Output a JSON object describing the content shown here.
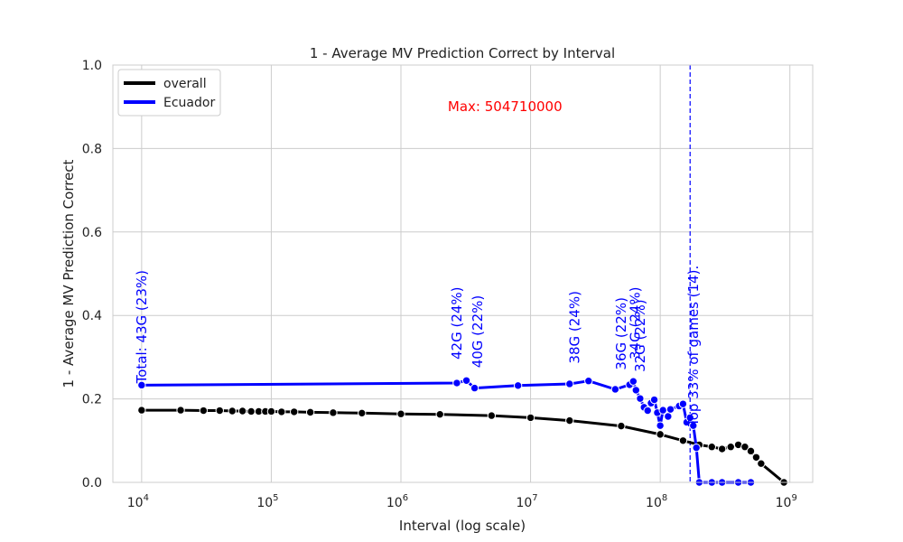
{
  "chart_data": {
    "type": "line",
    "title": "1 - Average MV Prediction Correct by Interval",
    "xlabel": "Interval (log scale)",
    "ylabel": "1 - Average MV Prediction Correct",
    "x_scale": "log",
    "xlim": [
      6000,
      1500000000
    ],
    "ylim": [
      0,
      1
    ],
    "x_ticks": [
      {
        "value": 10000,
        "base": "10",
        "exp": "4"
      },
      {
        "value": 100000,
        "base": "10",
        "exp": "5"
      },
      {
        "value": 1000000,
        "base": "10",
        "exp": "6"
      },
      {
        "value": 10000000,
        "base": "10",
        "exp": "7"
      },
      {
        "value": 100000000,
        "base": "10",
        "exp": "8"
      },
      {
        "value": 1000000000,
        "base": "10",
        "exp": "9"
      }
    ],
    "y_ticks": [
      "0.0",
      "0.2",
      "0.4",
      "0.6",
      "0.8",
      "1.0"
    ],
    "grid": true,
    "legend_position": "top-left",
    "series": [
      {
        "name": "overall",
        "color": "#000000",
        "x": [
          10000,
          20000,
          30000,
          40000,
          50000,
          60000,
          70000,
          80000,
          90000,
          100000,
          120000,
          150000,
          200000,
          300000,
          500000,
          1000000,
          2000000,
          5000000,
          10000000,
          20000000,
          50000000,
          100000000,
          150000000,
          200000000,
          250000000,
          300000000,
          350000000,
          400000000,
          450000000,
          500000000,
          550000000,
          600000000,
          900000000
        ],
        "y": [
          0.173,
          0.173,
          0.172,
          0.172,
          0.171,
          0.171,
          0.17,
          0.17,
          0.17,
          0.17,
          0.169,
          0.169,
          0.168,
          0.167,
          0.166,
          0.164,
          0.163,
          0.16,
          0.155,
          0.148,
          0.135,
          0.115,
          0.1,
          0.09,
          0.085,
          0.08,
          0.085,
          0.09,
          0.085,
          0.075,
          0.06,
          0.045,
          0.0
        ]
      },
      {
        "name": "Ecuador",
        "color": "#0000ff",
        "x": [
          10000,
          2700000,
          3200000,
          3700000,
          8000000,
          20000000,
          28000000,
          45000000,
          58000000,
          62000000,
          65000000,
          70000000,
          75000000,
          80000000,
          85000000,
          90000000,
          95000000,
          100000000,
          105000000,
          115000000,
          120000000,
          140000000,
          150000000,
          160000000,
          170000000,
          180000000,
          190000000,
          200000000,
          250000000,
          300000000,
          400000000,
          500000000
        ],
        "y": [
          0.233,
          0.238,
          0.244,
          0.226,
          0.232,
          0.236,
          0.243,
          0.223,
          0.234,
          0.242,
          0.221,
          0.201,
          0.18,
          0.172,
          0.19,
          0.198,
          0.167,
          0.136,
          0.173,
          0.158,
          0.175,
          0.183,
          0.188,
          0.144,
          0.155,
          0.136,
          0.083,
          0.0,
          0.0,
          0.0,
          0.0,
          0.0
        ]
      }
    ],
    "annotations": [
      {
        "text": "Max: 504710000",
        "x": 2300000,
        "y": 0.9,
        "color": "#ff0000",
        "rotate": false
      },
      {
        "text": "Total: 43G (23%)",
        "x": 10000,
        "y": 0.233,
        "color": "#0000ff",
        "rotate": true
      },
      {
        "text": "42G (24%)",
        "x": 2700000,
        "y": 0.29,
        "color": "#0000ff",
        "rotate": true
      },
      {
        "text": "40G (22%)",
        "x": 3900000,
        "y": 0.27,
        "color": "#0000ff",
        "rotate": true
      },
      {
        "text": "38G (24%)",
        "x": 22000000,
        "y": 0.28,
        "color": "#0000ff",
        "rotate": true
      },
      {
        "text": "36G (22%)",
        "x": 50000000,
        "y": 0.265,
        "color": "#0000ff",
        "rotate": true
      },
      {
        "text": "34G (24%)",
        "x": 64000000,
        "y": 0.29,
        "color": "#0000ff",
        "rotate": true
      },
      {
        "text": "32G (22%)",
        "x": 70000000,
        "y": 0.26,
        "color": "#0000ff",
        "rotate": true
      },
      {
        "text": "Top 33% of games (14).",
        "x": 180000000,
        "y": 0.13,
        "color": "#0000ff",
        "rotate": true
      }
    ],
    "vertical_line": {
      "x": 170000000,
      "color": "#0000ff",
      "style": "dashed"
    }
  }
}
